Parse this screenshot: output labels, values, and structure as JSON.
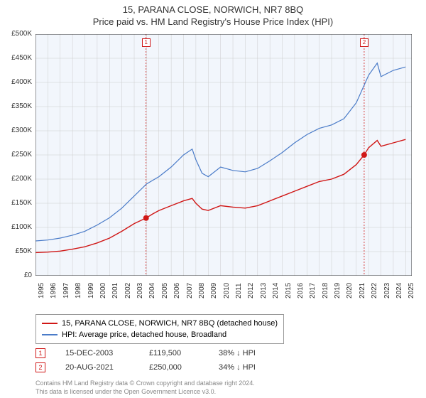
{
  "titles": {
    "line1": "15, PARANA CLOSE, NORWICH, NR7 8BQ",
    "line2": "Price paid vs. HM Land Registry's House Price Index (HPI)"
  },
  "chart": {
    "type": "line",
    "plot_bg": "#f2f6fc",
    "axis_color": "#333333",
    "grid_color": "#cccccc",
    "x_years": [
      "1995",
      "1996",
      "1997",
      "1998",
      "1999",
      "2000",
      "2001",
      "2002",
      "2003",
      "2004",
      "2005",
      "2006",
      "2007",
      "2008",
      "2009",
      "2010",
      "2011",
      "2012",
      "2013",
      "2014",
      "2015",
      "2016",
      "2017",
      "2018",
      "2019",
      "2020",
      "2021",
      "2022",
      "2023",
      "2024",
      "2025"
    ],
    "x_start": 1995,
    "x_end": 2025.5,
    "ylim": [
      0,
      500000
    ],
    "ytick_step": 50000,
    "yticks": [
      "£0",
      "£50K",
      "£100K",
      "£150K",
      "£200K",
      "£250K",
      "£300K",
      "£350K",
      "£400K",
      "£450K",
      "£500K"
    ],
    "label_fontsize": 10,
    "series": [
      {
        "name": "15, PARANA CLOSE, NORWICH, NR7 8BQ (detached house)",
        "color": "#d01716",
        "width": 1.4,
        "data": [
          [
            1995,
            48
          ],
          [
            1996,
            49
          ],
          [
            1997,
            51
          ],
          [
            1998,
            55
          ],
          [
            1999,
            60
          ],
          [
            2000,
            68
          ],
          [
            2001,
            78
          ],
          [
            2002,
            92
          ],
          [
            2003,
            108
          ],
          [
            2003.96,
            119.5
          ],
          [
            2004.5,
            128
          ],
          [
            2005,
            135
          ],
          [
            2006,
            145
          ],
          [
            2007,
            155
          ],
          [
            2007.7,
            160
          ],
          [
            2008,
            150
          ],
          [
            2008.5,
            138
          ],
          [
            2009,
            135
          ],
          [
            2010,
            145
          ],
          [
            2011,
            142
          ],
          [
            2012,
            140
          ],
          [
            2013,
            145
          ],
          [
            2014,
            155
          ],
          [
            2015,
            165
          ],
          [
            2016,
            175
          ],
          [
            2017,
            185
          ],
          [
            2018,
            195
          ],
          [
            2019,
            200
          ],
          [
            2020,
            210
          ],
          [
            2021,
            230
          ],
          [
            2021.64,
            250
          ],
          [
            2022,
            265
          ],
          [
            2022.7,
            280
          ],
          [
            2023,
            268
          ],
          [
            2024,
            275
          ],
          [
            2025,
            282
          ]
        ]
      },
      {
        "name": "HPI: Average price, detached house, Broadland",
        "color": "#4a7bc8",
        "width": 1.2,
        "data": [
          [
            1995,
            72
          ],
          [
            1996,
            74
          ],
          [
            1997,
            78
          ],
          [
            1998,
            84
          ],
          [
            1999,
            92
          ],
          [
            2000,
            105
          ],
          [
            2001,
            120
          ],
          [
            2002,
            140
          ],
          [
            2003,
            165
          ],
          [
            2004,
            190
          ],
          [
            2005,
            205
          ],
          [
            2006,
            225
          ],
          [
            2007,
            250
          ],
          [
            2007.7,
            262
          ],
          [
            2008,
            240
          ],
          [
            2008.5,
            212
          ],
          [
            2009,
            205
          ],
          [
            2010,
            225
          ],
          [
            2011,
            218
          ],
          [
            2012,
            215
          ],
          [
            2013,
            222
          ],
          [
            2014,
            238
          ],
          [
            2015,
            255
          ],
          [
            2016,
            275
          ],
          [
            2017,
            292
          ],
          [
            2018,
            305
          ],
          [
            2019,
            312
          ],
          [
            2020,
            325
          ],
          [
            2021,
            358
          ],
          [
            2022,
            415
          ],
          [
            2022.7,
            440
          ],
          [
            2023,
            412
          ],
          [
            2024,
            425
          ],
          [
            2025,
            432
          ]
        ]
      }
    ],
    "sale_lines": [
      {
        "marker": "1",
        "x": 2003.96,
        "y": 119.5,
        "line_color": "#d01716",
        "dash": "2,2"
      },
      {
        "marker": "2",
        "x": 2021.64,
        "y": 250,
        "line_color": "#d01716",
        "dash": "2,2"
      }
    ]
  },
  "legend": {
    "items": [
      {
        "color": "#d01716",
        "label": "15, PARANA CLOSE, NORWICH, NR7 8BQ (detached house)"
      },
      {
        "color": "#4a7bc8",
        "label": "HPI: Average price, detached house, Broadland"
      }
    ]
  },
  "sales": [
    {
      "marker": "1",
      "marker_color": "#d01716",
      "date": "15-DEC-2003",
      "price": "£119,500",
      "delta": "38% ↓ HPI"
    },
    {
      "marker": "2",
      "marker_color": "#d01716",
      "date": "20-AUG-2021",
      "price": "£250,000",
      "delta": "34% ↓ HPI"
    }
  ],
  "footer": {
    "line1": "Contains HM Land Registry data © Crown copyright and database right 2024.",
    "line2": "This data is licensed under the Open Government Licence v3.0."
  }
}
